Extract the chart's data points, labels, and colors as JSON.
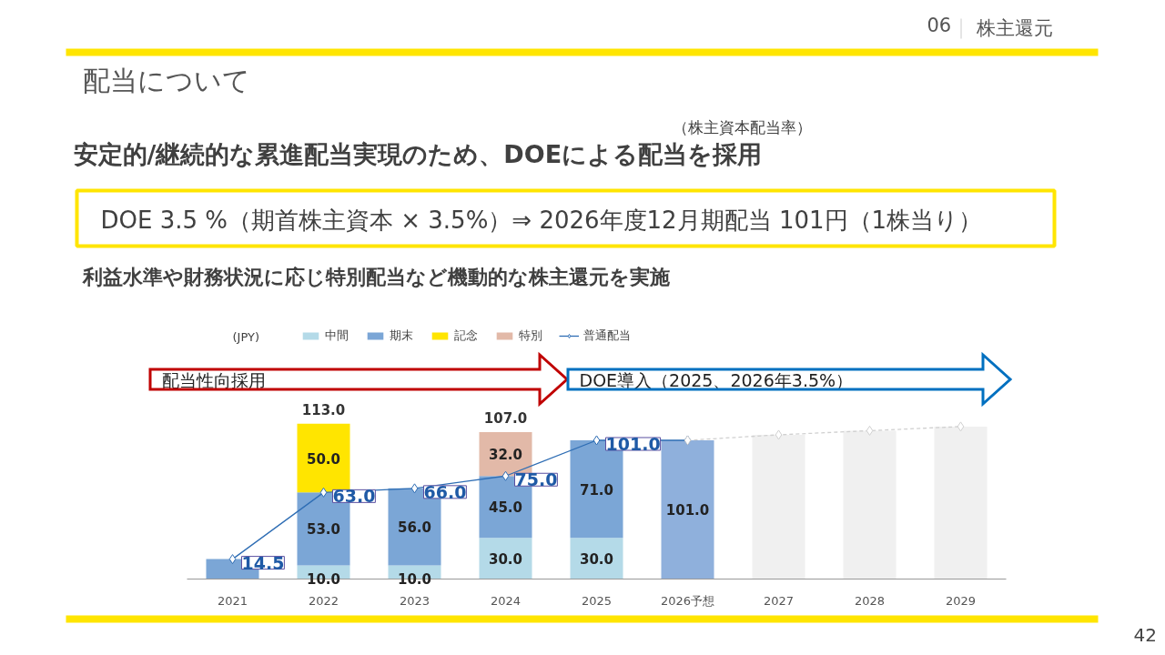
{
  "chart_data": {
    "type": "bar",
    "title": "配当について",
    "subtitle": "安定的/継続的な累進配当実現のため、DOEによる配当を採用",
    "annotations": [
      "06",
      "株主還元",
      "（株主資本配当率）",
      "DOE 3.5 %（期首株主資本 × 3.5%）⇒ 2026年度12月期配当 101円（1株当り）",
      "利益水準や財務状況に応じ特別配当など機動的な株主還元を実施",
      "(JPY)",
      "42",
      "配当性向採用",
      "DOE導入（2025、2026年3.5%）"
    ],
    "categories": [
      "2021",
      "2022",
      "2023",
      "2024",
      "2025",
      "2026予想",
      "2027",
      "2028",
      "2029"
    ],
    "stacked": true,
    "legend": "top",
    "grid": false,
    "tick_labels": "x",
    "series": [
      {
        "name": "中間",
        "color": "#b4dae8",
        "values": [
          null,
          10,
          10,
          30,
          30,
          null,
          null,
          null,
          null
        ],
        "value_labels": [
          null,
          "10.0",
          "10.0",
          "30.0",
          "30.0",
          null,
          null,
          null,
          null
        ]
      },
      {
        "name": "期末",
        "color": "#7ba6d6",
        "values": [
          14.5,
          53,
          56,
          45,
          71,
          null,
          null,
          null,
          null
        ],
        "value_labels": [
          null,
          "53.0",
          "56.0",
          "45.0",
          "71.0",
          null,
          null,
          null,
          null
        ]
      },
      {
        "name": "記念",
        "color": "#ffe500",
        "values": [
          null,
          50,
          null,
          null,
          null,
          null,
          null,
          null,
          null
        ],
        "value_labels": [
          null,
          "50.0",
          null,
          null,
          null,
          null,
          null,
          null,
          null
        ]
      },
      {
        "name": "特別",
        "color": "#e2b9a8",
        "values": [
          null,
          null,
          null,
          32,
          null,
          null,
          null,
          null,
          null
        ],
        "value_labels": [
          null,
          null,
          null,
          "32.0",
          null,
          null,
          null,
          null,
          null
        ]
      },
      {
        "color": "#8fb0dc",
        "values": [
          null,
          null,
          null,
          null,
          null,
          101,
          null,
          null,
          null
        ],
        "value_labels": [
          null,
          null,
          null,
          null,
          null,
          "101.0",
          null,
          null,
          null
        ]
      },
      {
        "color": "#f0f0f0",
        "values": [
          null,
          null,
          null,
          null,
          null,
          null,
          105,
          108,
          111
        ]
      },
      {
        "name": "普通配当",
        "type": "line",
        "color": "#2e6db4",
        "marker": "diamond",
        "line_style": "solid",
        "values": [
          14.5,
          63,
          66,
          75,
          101,
          101,
          null,
          null,
          null
        ],
        "value_labels": [
          "14.5",
          "63.0",
          "66.0",
          "75.0",
          "101.0",
          null,
          null,
          null,
          null
        ]
      },
      {
        "type": "line",
        "color": "#d0d0d0",
        "marker": "diamond",
        "line_style": "dashed",
        "values": [
          null,
          null,
          null,
          null,
          null,
          101,
          105,
          108,
          111
        ]
      }
    ],
    "totals": [
      null,
      "113.0",
      null,
      "107.0",
      null,
      null,
      null,
      null,
      null
    ]
  }
}
